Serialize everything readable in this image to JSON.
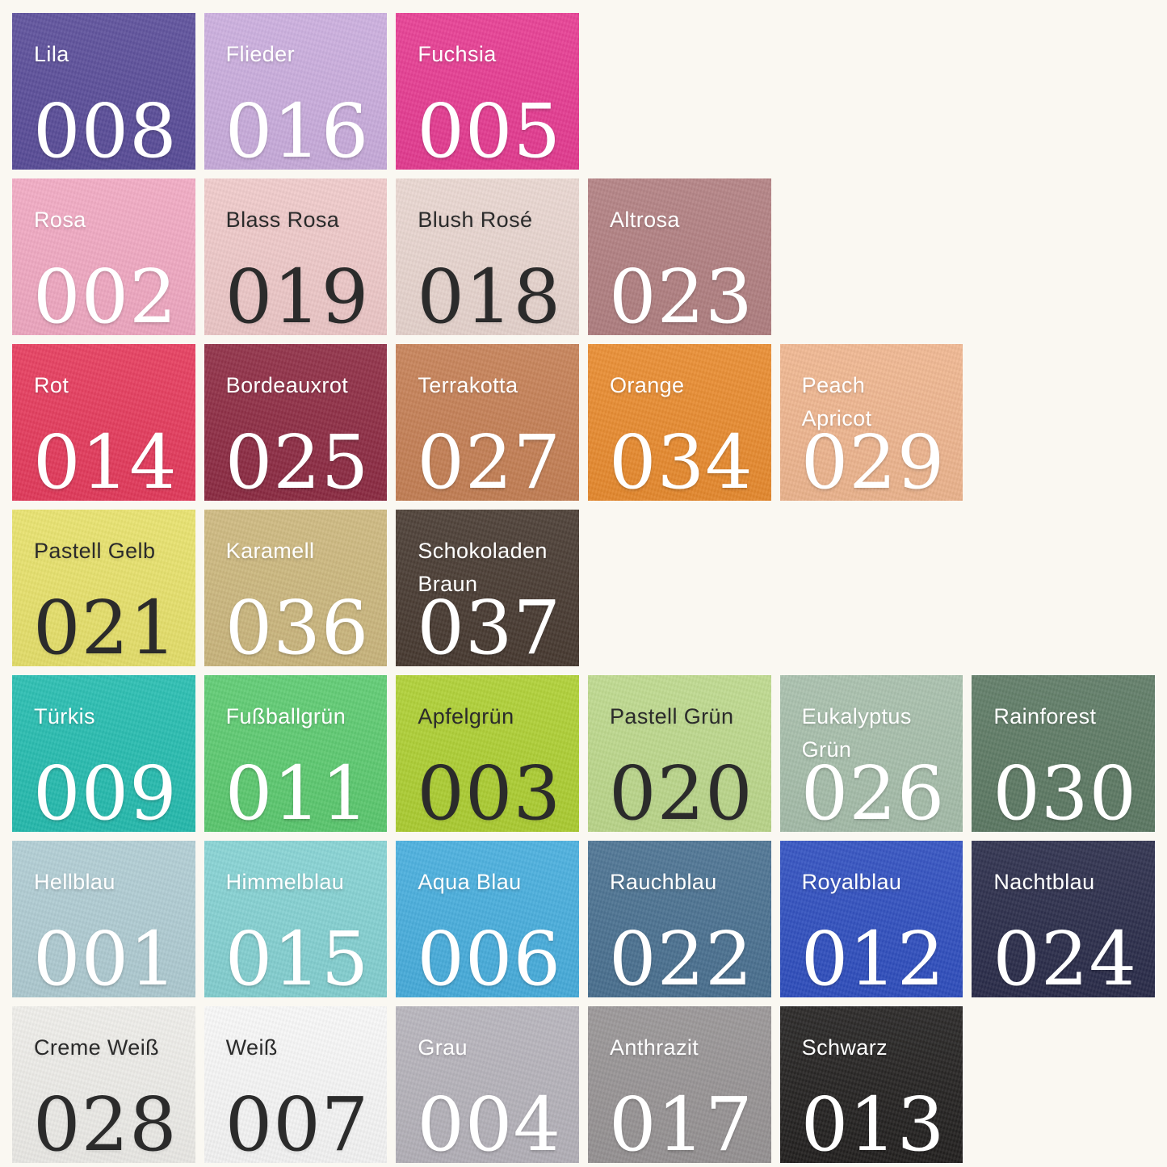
{
  "page": {
    "background_color": "#faf8f2",
    "description": "Felt color swatch chart with German color names and article numbers",
    "grid": {
      "columns": 6,
      "rows": 7
    }
  },
  "text_colors": {
    "light": "#ffffff",
    "dark": "#2b2b2b"
  },
  "rows": [
    {
      "tiles": [
        {
          "name": "Lila",
          "number": "008",
          "color": "#5a4d9a",
          "text": "light"
        },
        {
          "name": "Flieder",
          "number": "016",
          "color": "#cbadde",
          "text": "light"
        },
        {
          "name": "Fuchsia",
          "number": "005",
          "color": "#e73b92",
          "text": "light"
        }
      ]
    },
    {
      "tiles": [
        {
          "name": "Rosa",
          "number": "002",
          "color": "#f2a9c3",
          "text": "light"
        },
        {
          "name": "Blass Rosa",
          "number": "019",
          "color": "#f0caca",
          "text": "dark"
        },
        {
          "name": "Blush Rosé",
          "number": "018",
          "color": "#e9d6d0",
          "text": "dark"
        },
        {
          "name": "Altrosa",
          "number": "023",
          "color": "#b28082",
          "text": "light"
        }
      ]
    },
    {
      "tiles": [
        {
          "name": "Rot",
          "number": "014",
          "color": "#e63a5c",
          "text": "light"
        },
        {
          "name": "Bordeauxrot",
          "number": "025",
          "color": "#8e2b43",
          "text": "light"
        },
        {
          "name": "Terrakotta",
          "number": "027",
          "color": "#c68055",
          "text": "light"
        },
        {
          "name": "Orange",
          "number": "034",
          "color": "#e98b2e",
          "text": "light"
        },
        {
          "name": "Peach\nApricot",
          "number": "029",
          "color": "#f0b68f",
          "text": "light"
        }
      ]
    },
    {
      "tiles": [
        {
          "name": "Pastell Gelb",
          "number": "021",
          "color": "#e8e26b",
          "text": "dark"
        },
        {
          "name": "Karamell",
          "number": "036",
          "color": "#cdb87e",
          "text": "light"
        },
        {
          "name": "Schokoladen\nBraun",
          "number": "037",
          "color": "#483a31",
          "text": "light"
        }
      ]
    },
    {
      "tiles": [
        {
          "name": "Türkis",
          "number": "009",
          "color": "#25bdb0",
          "text": "light"
        },
        {
          "name": "Fußballgrün",
          "number": "011",
          "color": "#5ccb70",
          "text": "light"
        },
        {
          "name": "Apfelgrün",
          "number": "003",
          "color": "#aed032",
          "text": "dark"
        },
        {
          "name": "Pastell Grün",
          "number": "020",
          "color": "#bdd98c",
          "text": "dark"
        },
        {
          "name": "Eukalyptus\nGrün",
          "number": "026",
          "color": "#a7bfab",
          "text": "light"
        },
        {
          "name": "Rainforest",
          "number": "030",
          "color": "#5d7a64",
          "text": "light"
        }
      ]
    },
    {
      "tiles": [
        {
          "name": "Hellblau",
          "number": "001",
          "color": "#b0cdd4",
          "text": "light"
        },
        {
          "name": "Himmelblau",
          "number": "015",
          "color": "#85d2d3",
          "text": "light"
        },
        {
          "name": "Aqua Blau",
          "number": "006",
          "color": "#47aede",
          "text": "light"
        },
        {
          "name": "Rauchblau",
          "number": "022",
          "color": "#4a7191",
          "text": "light"
        },
        {
          "name": "Royalblau",
          "number": "012",
          "color": "#2f4fc0",
          "text": "light"
        },
        {
          "name": "Nachtblau",
          "number": "024",
          "color": "#2a2c4a",
          "text": "light"
        }
      ]
    },
    {
      "tiles": [
        {
          "name": "Creme Weiß",
          "number": "028",
          "color": "#eeede9",
          "text": "dark"
        },
        {
          "name": "Weiß",
          "number": "007",
          "color": "#f8f8f8",
          "text": "dark"
        },
        {
          "name": "Grau",
          "number": "004",
          "color": "#b6b3bb",
          "text": "light"
        },
        {
          "name": "Anthrazit",
          "number": "017",
          "color": "#989495",
          "text": "light"
        },
        {
          "name": "Schwarz",
          "number": "013",
          "color": "#232120",
          "text": "light"
        }
      ]
    }
  ]
}
